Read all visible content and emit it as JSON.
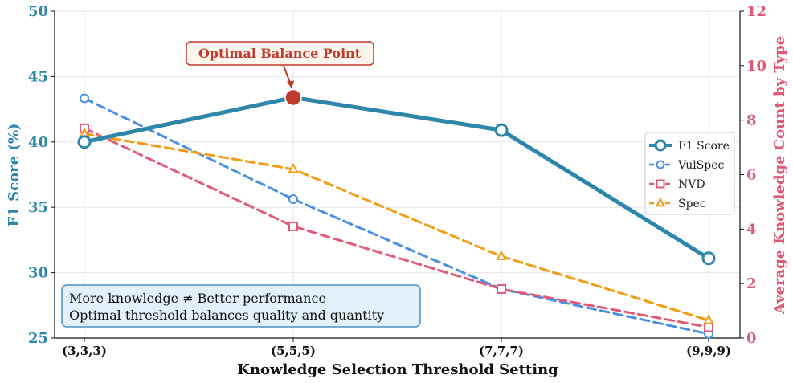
{
  "chart_data": {
    "type": "line",
    "xlabel": "Knowledge Selection Threshold Setting",
    "ylabel_left": "F1 Score (%)",
    "ylabel_right": "Average Knowledge Count by Type",
    "categories": [
      "(3,3,3)",
      "(5,5,5)",
      "(7,7,7)",
      "(9,9,9)"
    ],
    "ylim_left": [
      25,
      50
    ],
    "yticks_left": [
      25,
      30,
      35,
      40,
      45,
      50
    ],
    "ylim_right": [
      0,
      12
    ],
    "yticks_right": [
      0,
      2,
      4,
      6,
      8,
      10,
      12
    ],
    "grid": true,
    "legend_position": "center-right",
    "series": [
      {
        "name": "F1 Score",
        "axis": "left",
        "values": [
          40.0,
          43.4,
          40.9,
          31.1
        ],
        "color": "#2e86ab",
        "marker": "circle",
        "dash": "solid"
      },
      {
        "name": "VulSpec",
        "axis": "right",
        "values": [
          8.8,
          5.1,
          1.8,
          0.15
        ],
        "color": "#4a90e2",
        "marker": "circle",
        "dash": "dashed"
      },
      {
        "name": "NVD",
        "axis": "right",
        "values": [
          7.7,
          4.1,
          1.8,
          0.4
        ],
        "color": "#e05a78",
        "marker": "square",
        "dash": "dashed"
      },
      {
        "name": "Spec",
        "axis": "right",
        "values": [
          7.5,
          6.2,
          3.0,
          0.65
        ],
        "color": "#f39c12",
        "marker": "triangle",
        "dash": "dashed"
      }
    ],
    "highlight": {
      "category": "(5,5,5)",
      "value": 43.4,
      "label": "Optimal Balance Point",
      "color": "#c0392b"
    },
    "note_lines": [
      "More knowledge ≠ Better performance",
      "Optimal threshold balances quality and quantity"
    ],
    "colors": {
      "left_axis": "#2e86ab",
      "right_axis": "#e05a78",
      "note_bg": "#e3f1fb",
      "note_border": "#4a90c8"
    }
  }
}
